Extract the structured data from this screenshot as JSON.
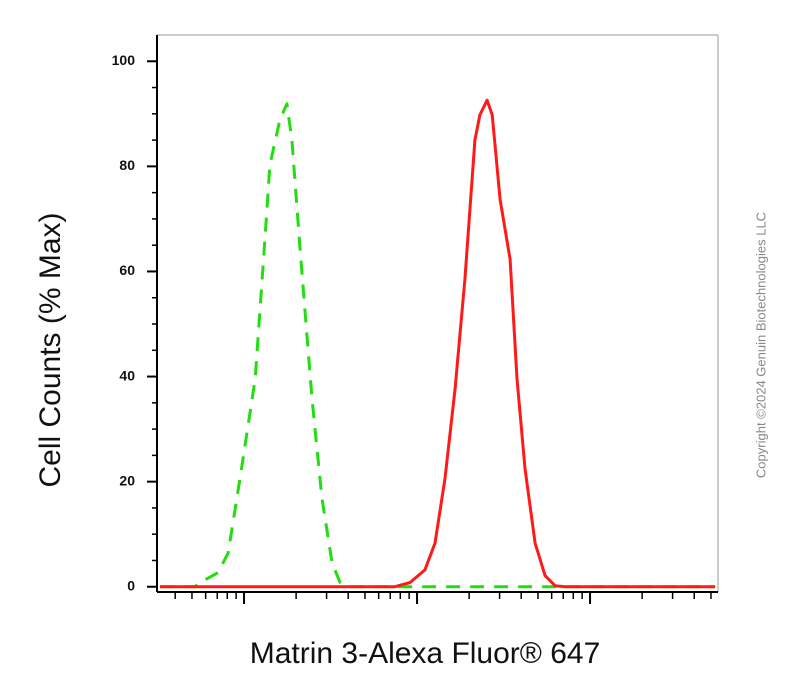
{
  "chart_data": {
    "type": "line",
    "x_label": "Matrin 3-Alexa Fluor® 647",
    "y_label": "Cell Counts (% Max)",
    "copyright": "Copyright ©2024 Genuin Biotechnologies LLC",
    "xscale": "log",
    "xlim": [
      314,
      549000
    ],
    "xticks": [
      1000,
      10000,
      100000
    ],
    "xminorticks": [
      400,
      500,
      600,
      700,
      800,
      900,
      2000,
      3000,
      4000,
      5000,
      6000,
      7000,
      8000,
      9000,
      20000,
      30000,
      40000,
      50000,
      60000,
      70000,
      80000,
      90000,
      200000,
      300000,
      400000,
      500000
    ],
    "ylim": [
      -1,
      105
    ],
    "yticks": [
      0,
      20,
      40,
      60,
      80,
      100
    ],
    "yminorticks": [
      5,
      10,
      15,
      25,
      30,
      35,
      45,
      50,
      55,
      65,
      70,
      75,
      85,
      90,
      95
    ],
    "series": [
      {
        "color": "#22dd11",
        "dash": true,
        "x": [
          327,
          521,
          557,
          707,
          809,
          948,
          1160,
          1320,
          1410,
          1610,
          1770,
          1890,
          2110,
          2470,
          2820,
          3230,
          3590,
          4100,
          10400,
          30200,
          528000
        ],
        "values": [
          0,
          0,
          0.8,
          2.7,
          6.4,
          20.6,
          39.6,
          66.1,
          80.3,
          88.8,
          91.9,
          85.0,
          64.2,
          35.8,
          16.9,
          4.5,
          0.8,
          0,
          0,
          0,
          0
        ]
      },
      {
        "color": "#ff1a1a",
        "dash": false,
        "x": [
          327,
          7460,
          9120,
          11100,
          12700,
          14500,
          16600,
          18900,
          21600,
          23100,
          25400,
          27200,
          30200,
          34500,
          37800,
          42100,
          48100,
          55000,
          62800,
          71600,
          528000
        ],
        "values": [
          0,
          0,
          0.8,
          3.2,
          8.3,
          20.6,
          37.7,
          58.5,
          85.0,
          89.8,
          92.6,
          89.8,
          73.7,
          62.3,
          39.6,
          22.5,
          8.3,
          2.1,
          0.2,
          0,
          0
        ]
      }
    ]
  }
}
